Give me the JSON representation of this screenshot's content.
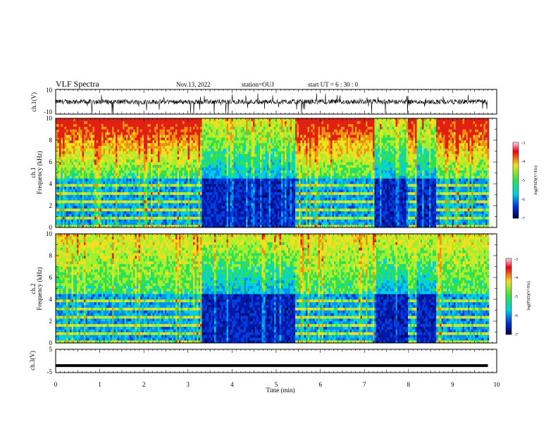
{
  "header": {
    "title": "VLF Spectra",
    "date": "Nov.13, 2022",
    "station": "station=OUJ",
    "start": "start  UT =  6 : 30 : 0"
  },
  "colorbar_label": "log(PSD)(V²/Hz)",
  "colors": {
    "deep_blue": "#0018a8",
    "cyan": "#00d0e0",
    "green": "#30e050",
    "yellow": "#f0e020",
    "red": "#e02010"
  },
  "chart_data": [
    {
      "type": "line",
      "name": "ch1-waveform",
      "ylabel": "ch.1(V)",
      "ylim": [
        -10,
        10
      ],
      "yticks": [
        "10",
        "-10"
      ],
      "xlim": [
        0,
        10
      ],
      "baseline": 0
    },
    {
      "type": "heatmap",
      "name": "ch1-spectrogram",
      "ylabel_line1": "ch.1",
      "ylabel_line2": "Frequency (kHz)",
      "ylim": [
        0,
        10
      ],
      "yticks": [
        "0",
        "2",
        "4",
        "6",
        "8",
        "10"
      ],
      "xlim": [
        0,
        10
      ],
      "data_end_min": 9.8,
      "colorbar": {
        "range": [
          -7,
          -3
        ],
        "ticks": [
          "-3",
          "-4",
          "-5",
          "-6",
          "-7"
        ],
        "label": "log(PSD)(V²/Hz)"
      },
      "quiet_intervals_min": [
        [
          3.3,
          5.4
        ],
        [
          7.2,
          7.95
        ],
        [
          8.15,
          8.6
        ]
      ]
    },
    {
      "type": "heatmap",
      "name": "ch2-spectrogram",
      "ylabel_line1": "ch.2",
      "ylabel_line2": "Frequency (kHz)",
      "ylim": [
        0,
        10
      ],
      "yticks": [
        "0",
        "2",
        "4",
        "6",
        "8",
        "10"
      ],
      "xlim": [
        0,
        10
      ],
      "data_end_min": 9.8,
      "colorbar": {
        "range": [
          -7,
          -3
        ],
        "ticks": [
          "-3",
          "-4",
          "-5",
          "-6",
          "-7"
        ],
        "label": "log(PSD)(V²/Hz)"
      },
      "quiet_intervals_min": [
        [
          3.3,
          5.4
        ],
        [
          7.2,
          7.95
        ],
        [
          8.15,
          8.6
        ]
      ]
    },
    {
      "type": "line",
      "name": "ch3-waveform",
      "ylabel": "ch.3(V)",
      "ylim": [
        -5,
        5
      ],
      "yticks": [
        "5",
        "-5"
      ],
      "xlabel": "Time (min)",
      "xlim": [
        0,
        10
      ],
      "xticks": [
        "0",
        "1",
        "2",
        "3",
        "4",
        "5",
        "6",
        "7",
        "8",
        "9",
        "10"
      ],
      "value": -2
    }
  ]
}
